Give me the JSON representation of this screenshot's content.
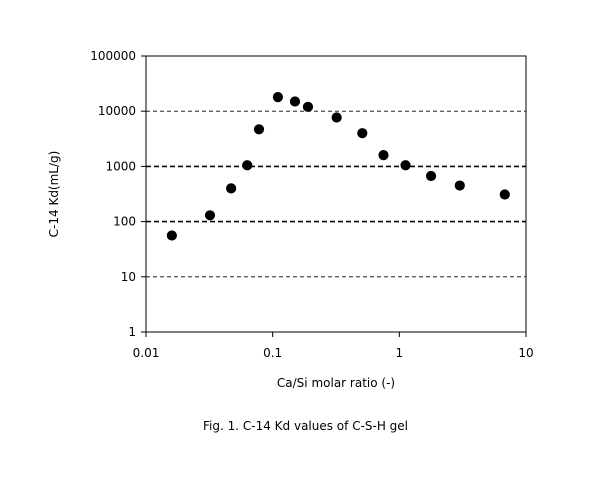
{
  "chart_data": {
    "type": "scatter",
    "xlabel": "Ca/Si molar ratio (-)",
    "ylabel": "C-14 Kd(mL/g)",
    "caption": "Fig. 1.  C-14 Kd values of C-S-H gel",
    "x_scale": "log",
    "y_scale": "log",
    "xlim": [
      0.01,
      10
    ],
    "ylim": [
      1,
      100000
    ],
    "x_ticks": [
      {
        "value": 0.01,
        "label": "0.01"
      },
      {
        "value": 0.1,
        "label": "0.1"
      },
      {
        "value": 1,
        "label": "1"
      },
      {
        "value": 10,
        "label": "10"
      }
    ],
    "y_ticks": [
      {
        "value": 1,
        "label": "1"
      },
      {
        "value": 10,
        "label": "10"
      },
      {
        "value": 100,
        "label": "100"
      },
      {
        "value": 1000,
        "label": "1000"
      },
      {
        "value": 10000,
        "label": "10000"
      },
      {
        "value": 100000,
        "label": "100000"
      }
    ],
    "gridlines_y": [
      {
        "value": 10,
        "style": "thin-dashed"
      },
      {
        "value": 100,
        "style": "bold-dashed"
      },
      {
        "value": 1000,
        "style": "bold-dashed"
      },
      {
        "value": 10000,
        "style": "thin-dashed"
      }
    ],
    "grid": "horizontal dashed",
    "legend": "none",
    "marker_color": "#000000",
    "series": [
      {
        "x": [
          0.016,
          0.032,
          0.047,
          0.063,
          0.078,
          0.11,
          0.15,
          0.19,
          0.32,
          0.51,
          0.75,
          1.12,
          1.78,
          3.0,
          6.8
        ],
        "y": [
          56,
          130,
          400,
          1050,
          4700,
          18000,
          15000,
          12000,
          7700,
          4000,
          1600,
          1050,
          670,
          450,
          310
        ]
      }
    ]
  }
}
